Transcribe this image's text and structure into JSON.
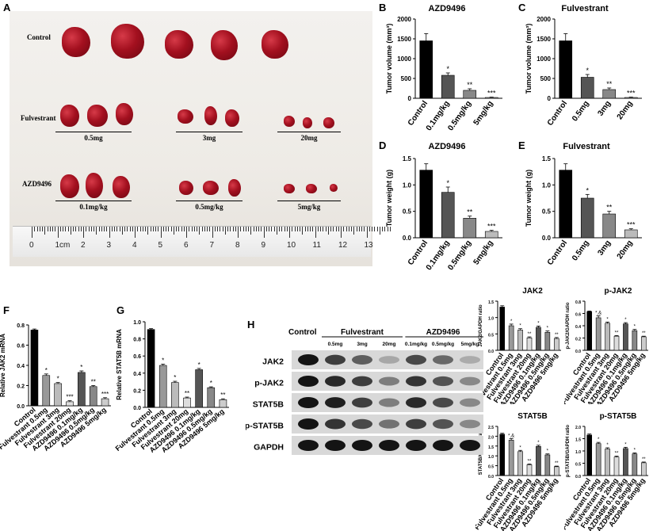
{
  "panelA": {
    "letter": "A",
    "row_labels": [
      "Control",
      "Fulvestrant",
      "AZD9496"
    ],
    "fulvestrant_doses": [
      "0.5mg",
      "3mg",
      "20mg"
    ],
    "azd_doses": [
      "0.1mg/kg",
      "0.5mg/kg",
      "5mg/kg"
    ],
    "ruler_numbers": [
      "0",
      "1cm",
      "2",
      "3",
      "4",
      "5",
      "6",
      "7",
      "8",
      "9",
      "10",
      "11",
      "12",
      "13"
    ]
  },
  "chart_data": [
    {
      "id": "B",
      "letter": "B",
      "type": "bar",
      "title": "AZD9496",
      "ylabel": "Tumor volume (mm³)",
      "categories": [
        "Control",
        "0.1mg/kg",
        "0.5mg/kg",
        "5mg/kg"
      ],
      "values": [
        1450,
        580,
        200,
        20
      ],
      "errors": [
        180,
        60,
        40,
        10
      ],
      "sig": [
        "",
        "*",
        "**",
        "***"
      ],
      "ylim": [
        0,
        2000
      ],
      "yticks": [
        "0",
        "500",
        "1000",
        "1500",
        "2000"
      ],
      "colors": [
        "#000000",
        "#555555",
        "#888888",
        "#bbbbbb"
      ]
    },
    {
      "id": "C",
      "letter": "C",
      "type": "bar",
      "title": "Fulvestrant",
      "ylabel": "Tumor volume (mm³)",
      "categories": [
        "Control",
        "0.5mg",
        "3mg",
        "20mg"
      ],
      "values": [
        1450,
        530,
        220,
        20
      ],
      "errors": [
        180,
        70,
        40,
        10
      ],
      "sig": [
        "",
        "*",
        "**",
        "***"
      ],
      "ylim": [
        0,
        2000
      ],
      "yticks": [
        "0",
        "500",
        "1000",
        "1500",
        "2000"
      ],
      "colors": [
        "#000000",
        "#555555",
        "#888888",
        "#bbbbbb"
      ]
    },
    {
      "id": "D",
      "letter": "D",
      "type": "bar",
      "title": "AZD9496",
      "ylabel": "Tumor weight (g)",
      "categories": [
        "Control",
        "0.1mg/kg",
        "0.5mg/kg",
        "5mg/kg"
      ],
      "values": [
        1.28,
        0.86,
        0.37,
        0.12
      ],
      "errors": [
        0.12,
        0.1,
        0.04,
        0.02
      ],
      "sig": [
        "",
        "*",
        "**",
        "***"
      ],
      "ylim": [
        0,
        1.5
      ],
      "yticks": [
        "0.0",
        "0.5",
        "1.0",
        "1.5"
      ],
      "colors": [
        "#000000",
        "#555555",
        "#888888",
        "#bbbbbb"
      ]
    },
    {
      "id": "E",
      "letter": "E",
      "type": "bar",
      "title": "Fulvestrant",
      "ylabel": "Tumor weight (g)",
      "categories": [
        "Control",
        "0.5mg",
        "3mg",
        "20mg"
      ],
      "values": [
        1.28,
        0.75,
        0.45,
        0.15
      ],
      "errors": [
        0.12,
        0.07,
        0.05,
        0.02
      ],
      "sig": [
        "",
        "*",
        "**",
        "***"
      ],
      "ylim": [
        0,
        1.5
      ],
      "yticks": [
        "0.0",
        "0.5",
        "1.0",
        "1.5"
      ],
      "colors": [
        "#000000",
        "#555555",
        "#888888",
        "#bbbbbb"
      ]
    },
    {
      "id": "F",
      "letter": "F",
      "type": "bar",
      "title": "",
      "ylabel": "Relative JAK2 mRNA",
      "categories": [
        "Control",
        "Fulvestrant 0.5mg",
        "Fulvestrant 3mg",
        "Fulvestrant 20mg",
        "AZD9496 0.1mg/kg",
        "AZD9496 0.5mg/kg",
        "AZD9496 5mg/kg"
      ],
      "values": [
        0.75,
        0.3,
        0.22,
        0.04,
        0.33,
        0.19,
        0.07
      ],
      "errors": [
        0.01,
        0.015,
        0.01,
        0.01,
        0.015,
        0.01,
        0.01
      ],
      "sig": [
        "",
        "*",
        "*",
        "***",
        "*",
        "**",
        "***"
      ],
      "ylim": [
        0,
        0.8
      ],
      "yticks": [
        "0.0",
        "0.2",
        "0.4",
        "0.6",
        "0.8"
      ],
      "colors": [
        "#000000",
        "#999999",
        "#bbbbbb",
        "#dddddd",
        "#555555",
        "#888888",
        "#cccccc"
      ]
    },
    {
      "id": "G",
      "letter": "G",
      "type": "bar",
      "title": "",
      "ylabel": "Relative STAT5B mRNA",
      "categories": [
        "Control",
        "Fulvestrant 0.5mg",
        "Fulvestrant 3mg",
        "Fulvestrant 20mg",
        "AZD9496 0.1mg/kg",
        "AZD9496 0.5mg/kg",
        "AZD9496 5mg/kg"
      ],
      "values": [
        0.91,
        0.49,
        0.29,
        0.11,
        0.44,
        0.23,
        0.09
      ],
      "errors": [
        0.01,
        0.015,
        0.015,
        0.01,
        0.015,
        0.01,
        0.01
      ],
      "sig": [
        "",
        "*",
        "*",
        "**",
        "*",
        "*",
        "**"
      ],
      "ylim": [
        0,
        1.0
      ],
      "yticks": [
        "0.0",
        "0.2",
        "0.4",
        "0.6",
        "0.8",
        "1.0"
      ],
      "colors": [
        "#000000",
        "#999999",
        "#bbbbbb",
        "#dddddd",
        "#555555",
        "#888888",
        "#cccccc"
      ]
    },
    {
      "id": "H1",
      "letter": "",
      "type": "bar",
      "title": "JAK2",
      "ylabel": "JAK2/GAPDH ratio",
      "categories": [
        "Control",
        "Fulvestrant 0.5mg",
        "Fulvestrant 3mg",
        "Fulvestrant 20mg",
        "AZD9496 0.1mg/kg",
        "AZD9496 0.5mg/kg",
        "AZD9496 5mg/kg"
      ],
      "values": [
        1.32,
        0.75,
        0.62,
        0.38,
        0.7,
        0.55,
        0.36
      ],
      "errors": [
        0.04,
        0.05,
        0.04,
        0.03,
        0.04,
        0.04,
        0.03
      ],
      "sig": [
        "",
        "*",
        "*",
        "**",
        "*",
        "*",
        "**"
      ],
      "ylim": [
        0,
        1.5
      ],
      "yticks": [
        "0.0",
        "0.5",
        "1.0",
        "1.5"
      ],
      "colors": [
        "#000000",
        "#999999",
        "#bbbbbb",
        "#dddddd",
        "#555555",
        "#888888",
        "#cccccc"
      ]
    },
    {
      "id": "H2",
      "letter": "",
      "type": "bar",
      "title": "p-JAK2",
      "ylabel": "p-JAK2/GAPDH ratio",
      "categories": [
        "Control",
        "Fulvestrant 0.5mg",
        "Fulvestrant 3mg",
        "Fulvestrant 20mg",
        "AZD9496 0.1mg/kg",
        "AZD9496 0.5mg/kg",
        "AZD9496 5mg/kg"
      ],
      "values": [
        0.63,
        0.53,
        0.44,
        0.23,
        0.43,
        0.32,
        0.22
      ],
      "errors": [
        0.01,
        0.03,
        0.02,
        0.01,
        0.02,
        0.02,
        0.01
      ],
      "sig": [
        "",
        "*,&",
        "*",
        "**",
        "*",
        "*",
        "**"
      ],
      "ylim": [
        0,
        0.8
      ],
      "yticks": [
        "0.0",
        "0.2",
        "0.4",
        "0.6",
        "0.8"
      ],
      "colors": [
        "#000000",
        "#999999",
        "#bbbbbb",
        "#dddddd",
        "#555555",
        "#888888",
        "#cccccc"
      ]
    },
    {
      "id": "H3",
      "letter": "",
      "type": "bar",
      "title": "STAT5B",
      "ylabel": "STAT5B/GAPDH ratio",
      "categories": [
        "Control",
        "Fulvestrant 0.5mg",
        "Fulvestrant 3mg",
        "Fulvestrant 20mg",
        "AZD9496 0.1mg/kg",
        "AZD9496 0.5mg/kg",
        "AZD9496 5mg/kg"
      ],
      "values": [
        2.1,
        1.8,
        1.22,
        0.55,
        1.48,
        1.05,
        0.45
      ],
      "errors": [
        0.05,
        0.08,
        0.06,
        0.04,
        0.06,
        0.05,
        0.03
      ],
      "sig": [
        "",
        "*,&",
        "*",
        "**",
        "*",
        "*",
        "**"
      ],
      "ylim": [
        0,
        2.5
      ],
      "yticks": [
        "0.0",
        "0.5",
        "1.0",
        "1.5",
        "2.0",
        "2.5"
      ],
      "colors": [
        "#000000",
        "#999999",
        "#bbbbbb",
        "#dddddd",
        "#555555",
        "#888888",
        "#cccccc"
      ]
    },
    {
      "id": "H4",
      "letter": "",
      "type": "bar",
      "title": "p-STAT5B",
      "ylabel": "p-STAT5B/GAPDH ratio",
      "categories": [
        "Control",
        "Fulvestrant 0.5mg",
        "Fulvestrant 3mg",
        "Fulvestrant 20mg",
        "AZD9496 0.1mg/kg",
        "AZD9496 0.5mg/kg",
        "AZD9496 5mg/kg"
      ],
      "values": [
        1.65,
        1.3,
        1.08,
        0.75,
        1.1,
        0.88,
        0.52
      ],
      "errors": [
        0.04,
        0.05,
        0.05,
        0.04,
        0.05,
        0.04,
        0.03
      ],
      "sig": [
        "",
        "*",
        "*",
        "**",
        "*",
        "*",
        "**"
      ],
      "ylim": [
        0,
        2.0
      ],
      "yticks": [
        "0.0",
        "0.5",
        "1.0",
        "1.5",
        "2.0"
      ],
      "colors": [
        "#000000",
        "#999999",
        "#bbbbbb",
        "#dddddd",
        "#555555",
        "#888888",
        "#cccccc"
      ]
    }
  ],
  "panelH": {
    "letter": "H",
    "group_control": "Control",
    "group_fulvestrant": "Fulvestrant",
    "group_azd": "AZD9496",
    "lane_labels": [
      "0.5mg",
      "3mg",
      "20mg",
      "0.1mg/kg",
      "0.5mg/kg",
      "5mg/kg"
    ],
    "band_labels": [
      "JAK2",
      "p-JAK2",
      "STAT5B",
      "p-STAT5B",
      "GAPDH"
    ],
    "band_intensity": [
      [
        1.0,
        0.8,
        0.65,
        0.3,
        0.75,
        0.6,
        0.28
      ],
      [
        1.0,
        0.9,
        0.8,
        0.5,
        0.85,
        0.7,
        0.45
      ],
      [
        1.0,
        0.95,
        0.8,
        0.5,
        0.9,
        0.75,
        0.45
      ],
      [
        1.0,
        0.85,
        0.75,
        0.55,
        0.8,
        0.7,
        0.45
      ],
      [
        1.0,
        1.0,
        1.0,
        1.0,
        1.0,
        1.0,
        1.0
      ]
    ]
  }
}
